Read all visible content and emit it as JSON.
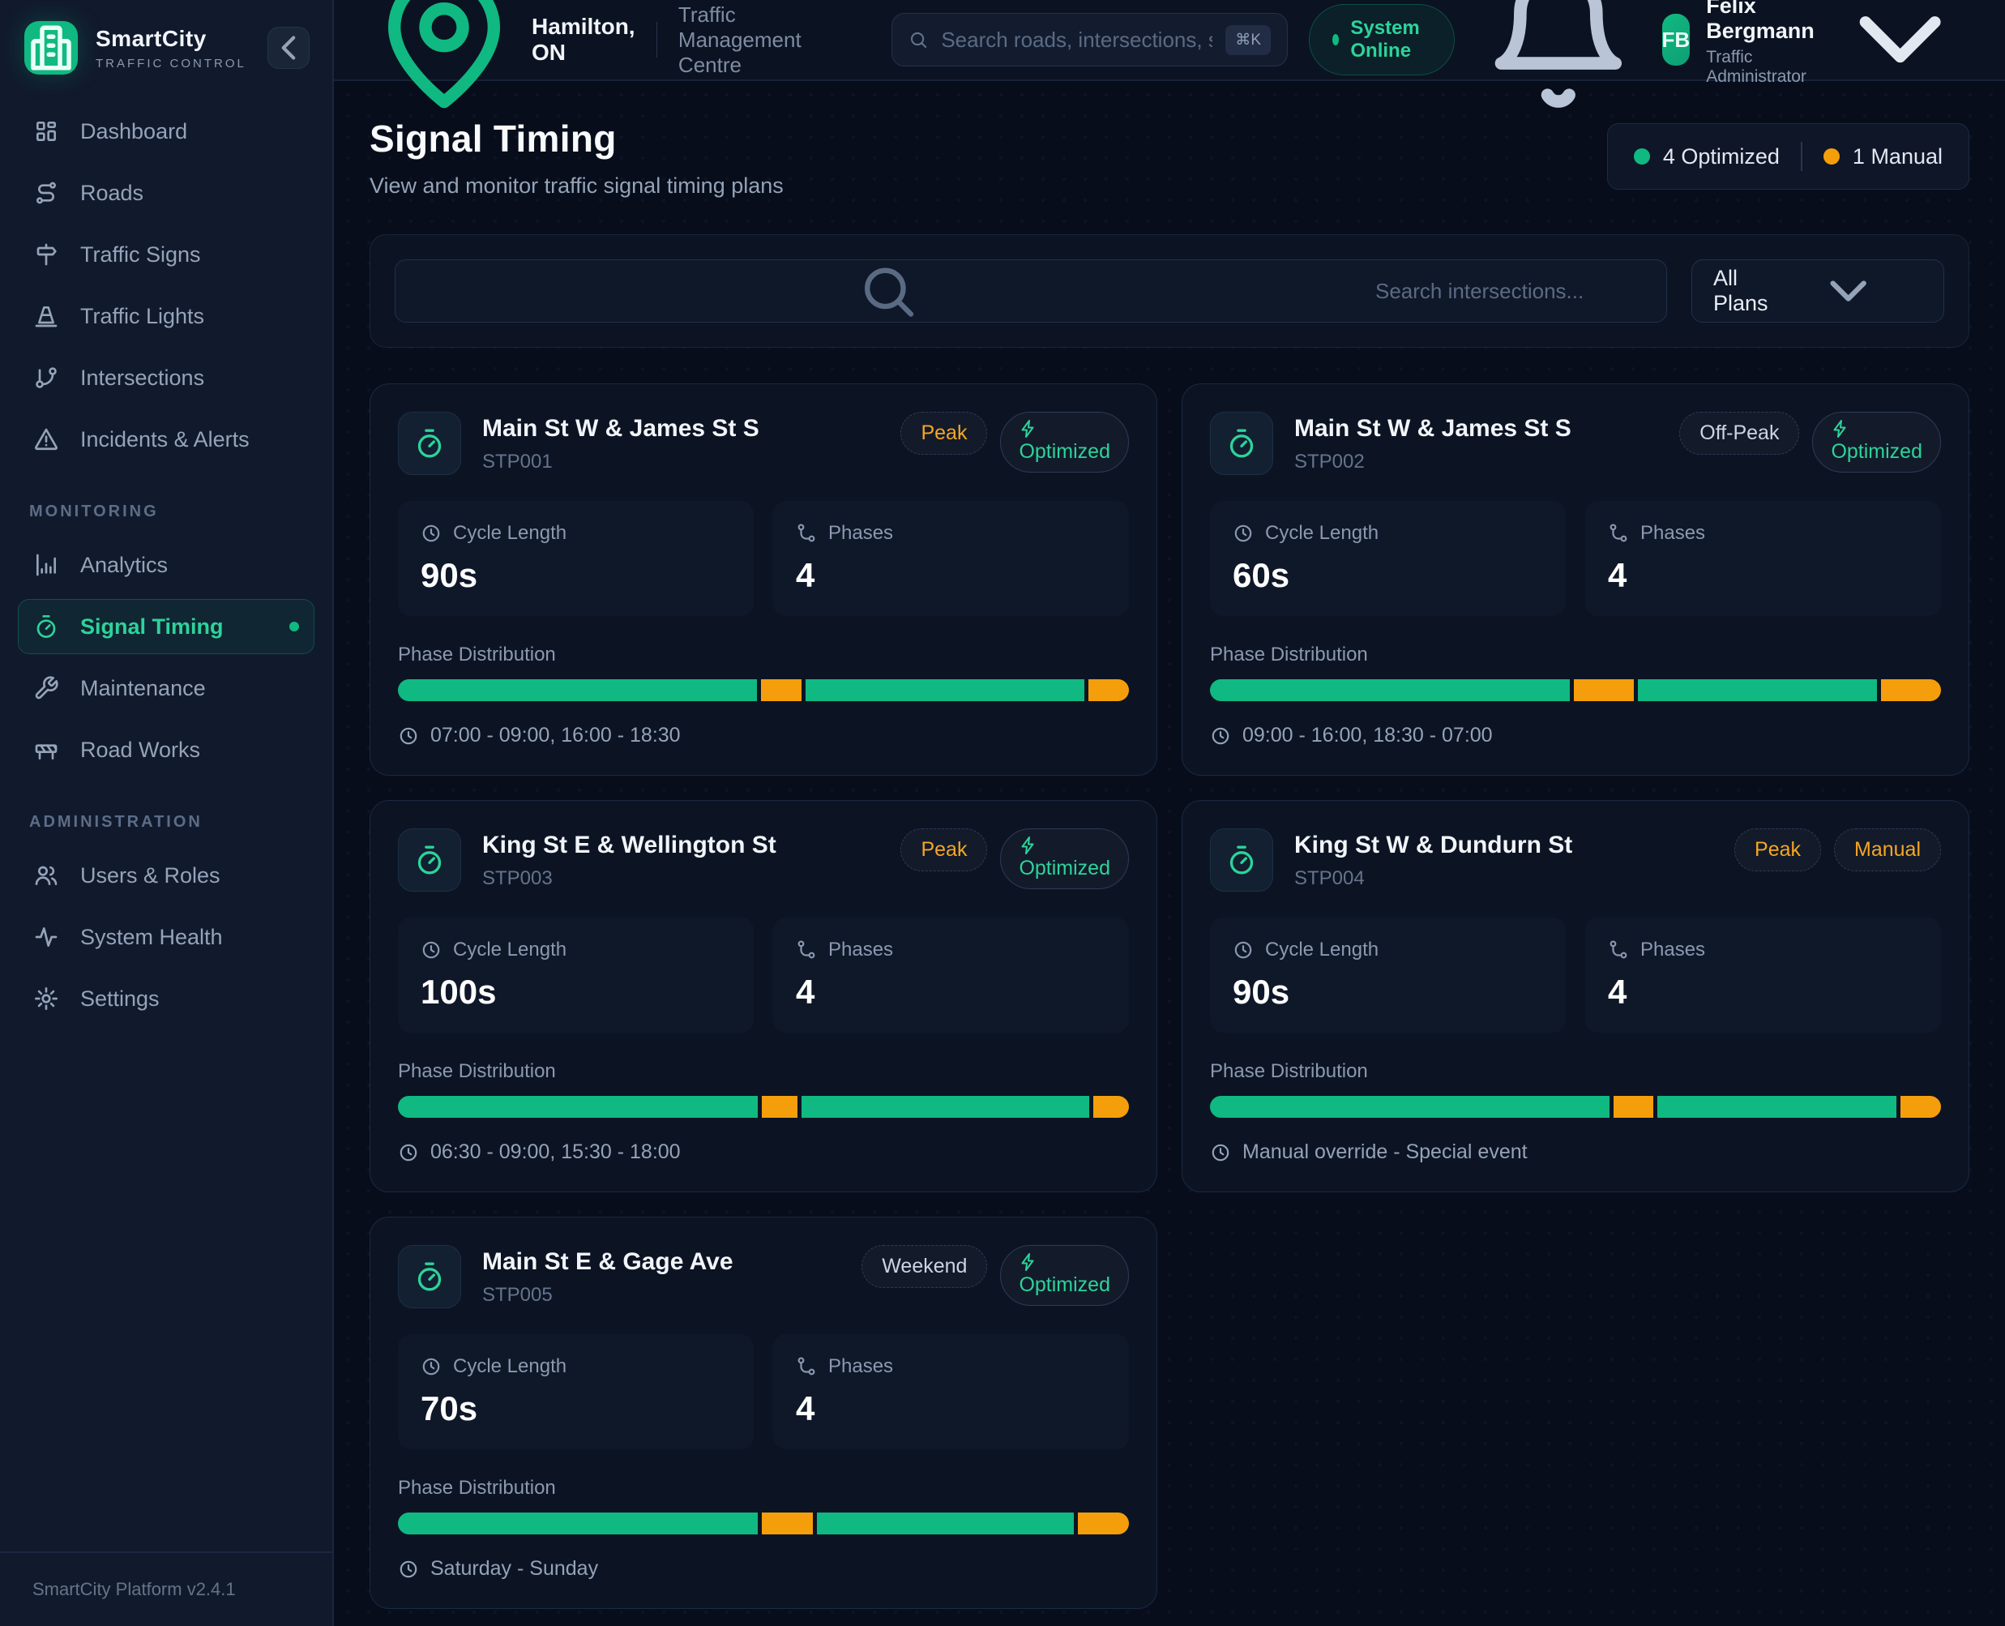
{
  "app": {
    "name": "SmartCity",
    "tagline": "TRAFFIC CONTROL",
    "version": "SmartCity Platform v2.4.1"
  },
  "topbar": {
    "location": "Hamilton, ON",
    "centre": "Traffic Management Centre",
    "search_placeholder": "Search roads, intersections, signs...",
    "shortcut": "⌘K",
    "status": "System Online",
    "user": {
      "initials": "FB",
      "name": "Felix Bergmann",
      "role": "Traffic Administrator"
    }
  },
  "sidebar": {
    "sections": [
      {
        "label": "",
        "items": [
          {
            "icon": "layout-grid-icon",
            "label": "Dashboard"
          },
          {
            "icon": "route-icon",
            "label": "Roads"
          },
          {
            "icon": "signpost-icon",
            "label": "Traffic Signs"
          },
          {
            "icon": "cone-icon",
            "label": "Traffic Lights"
          },
          {
            "icon": "git-branch-icon",
            "label": "Intersections"
          },
          {
            "icon": "alert-triangle-icon",
            "label": "Incidents & Alerts"
          }
        ]
      },
      {
        "label": "MONITORING",
        "items": [
          {
            "icon": "bar-chart-icon",
            "label": "Analytics"
          },
          {
            "icon": "timer-icon",
            "label": "Signal Timing",
            "active": true
          },
          {
            "icon": "wrench-icon",
            "label": "Maintenance"
          },
          {
            "icon": "barrier-icon",
            "label": "Road Works"
          }
        ]
      },
      {
        "label": "ADMINISTRATION",
        "items": [
          {
            "icon": "users-icon",
            "label": "Users & Roles"
          },
          {
            "icon": "activity-icon",
            "label": "System Health"
          },
          {
            "icon": "settings-icon",
            "label": "Settings"
          }
        ]
      }
    ]
  },
  "page": {
    "title": "Signal Timing",
    "subtitle": "View and monitor traffic signal timing plans",
    "stats": [
      {
        "color": "#10b981",
        "label": "4 Optimized"
      },
      {
        "color": "#f59e0b",
        "label": "1 Manual"
      }
    ]
  },
  "filters": {
    "search_placeholder": "Search intersections...",
    "plan_filter": "All Plans"
  },
  "card_labels": {
    "cycle": "Cycle Length",
    "phases": "Phases",
    "distribution": "Phase Distribution"
  },
  "colors": {
    "green": "#10b981",
    "orange": "#f59e0b"
  },
  "cards": [
    {
      "name": "Main St W & James St S",
      "id": "STP001",
      "badges": [
        {
          "label": "Peak",
          "type": "warning"
        },
        {
          "label": "Optimized",
          "type": "success",
          "icon": "zap-icon"
        }
      ],
      "cycle_length": "90s",
      "phases": "4",
      "distribution": [
        {
          "color": "green",
          "pct": 50
        },
        {
          "color": "orange",
          "pct": 5.6
        },
        {
          "color": "green",
          "pct": 38.9
        },
        {
          "color": "orange",
          "pct": 5.6
        }
      ],
      "schedule": "07:00 - 09:00, 16:00 - 18:30"
    },
    {
      "name": "Main St W & James St S",
      "id": "STP002",
      "badges": [
        {
          "label": "Off-Peak",
          "type": "neutral"
        },
        {
          "label": "Optimized",
          "type": "success",
          "icon": "zap-icon"
        }
      ],
      "cycle_length": "60s",
      "phases": "4",
      "distribution": [
        {
          "color": "green",
          "pct": 50
        },
        {
          "color": "orange",
          "pct": 8.3
        },
        {
          "color": "green",
          "pct": 33.3
        },
        {
          "color": "orange",
          "pct": 8.3
        }
      ],
      "schedule": "09:00 - 16:00, 18:30 - 07:00"
    },
    {
      "name": "King St E & Wellington St",
      "id": "STP003",
      "badges": [
        {
          "label": "Peak",
          "type": "warning"
        },
        {
          "label": "Optimized",
          "type": "success",
          "icon": "zap-icon"
        }
      ],
      "cycle_length": "100s",
      "phases": "4",
      "distribution": [
        {
          "color": "green",
          "pct": 50
        },
        {
          "color": "orange",
          "pct": 5
        },
        {
          "color": "green",
          "pct": 40
        },
        {
          "color": "orange",
          "pct": 5
        }
      ],
      "schedule": "06:30 - 09:00, 15:30 - 18:00"
    },
    {
      "name": "King St W & Dundurn St",
      "id": "STP004",
      "badges": [
        {
          "label": "Peak",
          "type": "warning"
        },
        {
          "label": "Manual",
          "type": "warning"
        }
      ],
      "cycle_length": "90s",
      "phases": "4",
      "distribution": [
        {
          "color": "green",
          "pct": 55.6
        },
        {
          "color": "orange",
          "pct": 5.6
        },
        {
          "color": "green",
          "pct": 33.3
        },
        {
          "color": "orange",
          "pct": 5.6
        }
      ],
      "schedule": "Manual override - Special event"
    },
    {
      "name": "Main St E & Gage Ave",
      "id": "STP005",
      "badges": [
        {
          "label": "Weekend",
          "type": "neutral"
        },
        {
          "label": "Optimized",
          "type": "success",
          "icon": "zap-icon"
        }
      ],
      "cycle_length": "70s",
      "phases": "4",
      "distribution": [
        {
          "color": "green",
          "pct": 50
        },
        {
          "color": "orange",
          "pct": 7.1
        },
        {
          "color": "green",
          "pct": 35.7
        },
        {
          "color": "orange",
          "pct": 7.1
        }
      ],
      "schedule": "Saturday - Sunday"
    }
  ]
}
